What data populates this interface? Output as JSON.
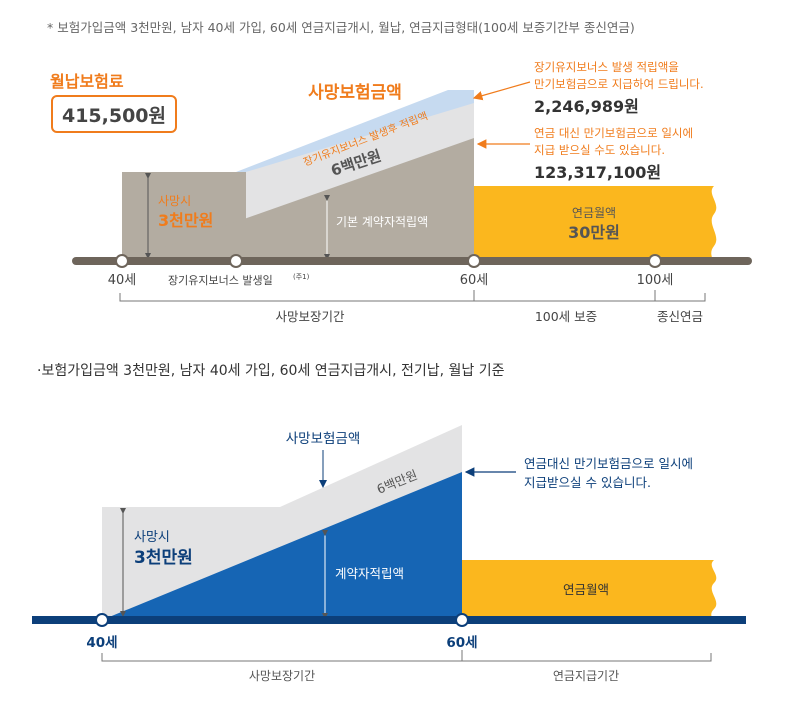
{
  "top": {
    "note": "* 보험가입금액 3천만원, 남자 40세 가입, 60세 연금지급개시, 월납, 연금지급형태(100세 보증기간부 종신연금)",
    "premium_label": "월납보험료",
    "premium_value": "415,500원",
    "death_benefit_label": "사망보험금액",
    "bonus_accum_label": "장기유지보너스 발생후 적립액",
    "six_million": "6백만원",
    "death_at_label": "사망시",
    "death_at_amount": "3천만원",
    "basic_reserve_label": "기본 계약자적립액",
    "annuity_label": "연금월액",
    "annuity_amount": "30만원",
    "bonus_note_line1": "장기유지보너스 발생 적립액을",
    "bonus_note_line2": "만기보험금으로 지급하여 드립니다.",
    "bonus_amount": "2,246,989원",
    "lump_note_line1": "연금 대신 만기보험금으로 일시에",
    "lump_note_line2": "지급 받으실 수도 있습니다.",
    "lump_amount": "123,317,100원",
    "age_40": "40세",
    "bonus_date_label": "장기유지보너스 발생일",
    "bonus_date_sup": "(주1)",
    "age_60": "60세",
    "age_100": "100세",
    "period_death": "사망보장기간",
    "period_guarantee": "100세 보증",
    "period_lifetime": "종신연금"
  },
  "bottom": {
    "note": "·보험가입금액 3천만원, 남자 40세 가입, 60세 연금지급개시, 전기납, 월납 기준",
    "death_benefit_label": "사망보험금액",
    "six_million": "6백만원",
    "death_at_label": "사망시",
    "death_at_amount": "3천만원",
    "reserve_label": "계약자적립액",
    "lump_note_line1": "연금대신 만기보험금으로 일시에",
    "lump_note_line2": "지급받으실 수 있습니다.",
    "annuity_label": "연금월액",
    "age_40": "40세",
    "age_60": "60세",
    "period_death": "사망보장기간",
    "period_annuity": "연금지급기간"
  },
  "colors": {
    "orange": "#f07c1c",
    "gray_area": "#b3aca1",
    "light_gray": "#e3e3e4",
    "light_blue": "#c6daf0",
    "yellow": "#fbb71e",
    "timeline_brown": "#6e655b",
    "navy": "#0c3f7a",
    "blue": "#1665b4"
  }
}
